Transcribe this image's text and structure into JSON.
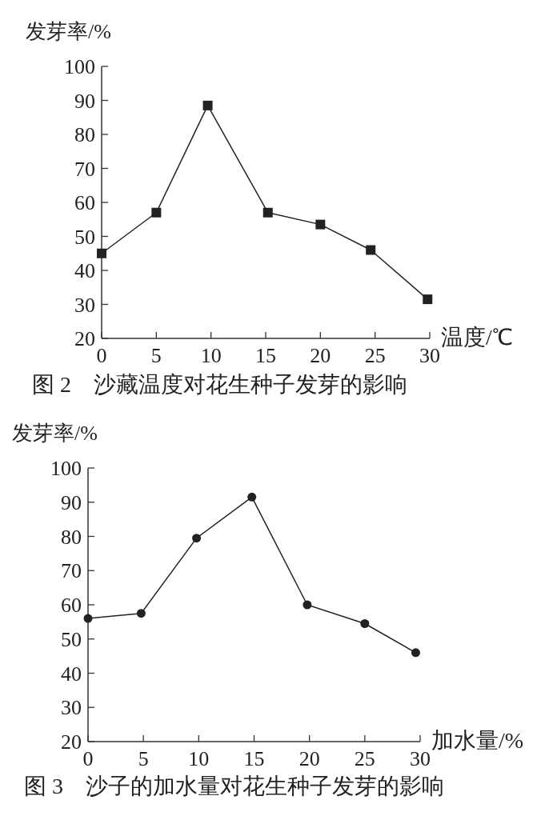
{
  "chart_data": [
    {
      "type": "line",
      "title": "图 2　沙藏温度对花生种子发芽的影响",
      "xlabel": "温度/℃",
      "ylabel": "发芽率/%",
      "marker": "square",
      "line_style": "solid",
      "grid": false,
      "series": [
        {
          "color": "#222222",
          "x": [
            0,
            5,
            9.7,
            15.2,
            20,
            24.6,
            29.8
          ],
          "values": [
            45,
            57,
            88.5,
            57,
            53.5,
            46,
            31.5
          ]
        }
      ],
      "xlim": [
        0,
        30
      ],
      "xticks": [
        0,
        5,
        10,
        15,
        20,
        25,
        30
      ],
      "ylim": [
        20,
        100
      ],
      "yticks": [
        20,
        30,
        40,
        50,
        60,
        70,
        80,
        90,
        100
      ]
    },
    {
      "type": "line",
      "title": "图 3　沙子的加水量对花生种子发芽的影响",
      "xlabel": "加水量/%",
      "ylabel": "发芽率/%",
      "marker": "circle",
      "line_style": "solid",
      "grid": false,
      "series": [
        {
          "color": "#222222",
          "x": [
            0,
            4.8,
            9.8,
            14.8,
            19.8,
            25,
            29.6
          ],
          "values": [
            56,
            57.5,
            79.5,
            91.5,
            60,
            54.5,
            46
          ]
        }
      ],
      "xlim": [
        0,
        30
      ],
      "xticks": [
        0,
        5,
        10,
        15,
        20,
        25,
        30
      ],
      "ylim": [
        20,
        100
      ],
      "yticks": [
        20,
        30,
        40,
        50,
        60,
        70,
        80,
        90,
        100
      ]
    }
  ]
}
